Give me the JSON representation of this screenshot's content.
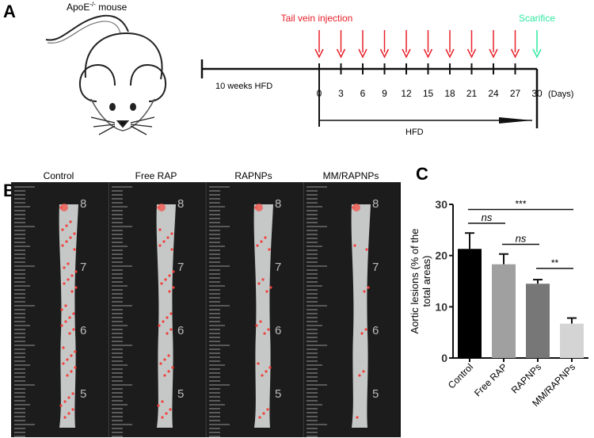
{
  "panel_a": {
    "label": "A",
    "mouse_label": "ApoE",
    "mouse_sup": "-/-",
    "mouse_suffix": " mouse",
    "injection_label": "Tail vein injection",
    "sacrifice_label": "Scarifice",
    "pre_label": "10 weeks HFD",
    "days": [
      "0",
      "3",
      "6",
      "9",
      "12",
      "15",
      "18",
      "21",
      "24",
      "27",
      "30"
    ],
    "days_unit": "(Days)",
    "hfd_label": "HFD",
    "colors": {
      "injection": "#e8202a",
      "sacrifice": "#2ee8a0"
    }
  },
  "panel_b": {
    "label": "B",
    "groups": [
      "Control",
      "Free RAP",
      "RAPNPs",
      "MM/RAPNPs"
    ],
    "ruler_numbers": [
      "8",
      "7",
      "6",
      "5"
    ]
  },
  "panel_c": {
    "label": "C"
  },
  "chart_data": {
    "type": "bar",
    "title": "",
    "xlabel": "",
    "ylabel": "Aortic lesions (% of the total areas)",
    "ylabel_lines": [
      "Aortic lesions (% of the",
      "total areas)"
    ],
    "categories": [
      "Control",
      "Free RAP",
      "RAPNPs",
      "MM/RAPNPs"
    ],
    "values": [
      21.3,
      18.3,
      14.5,
      6.7
    ],
    "errors": [
      3.1,
      2.0,
      0.8,
      1.1
    ],
    "colors": [
      "#000000",
      "#a0a0a0",
      "#777777",
      "#d4d4d4"
    ],
    "ylim": [
      0,
      30
    ],
    "yticks": [
      "0",
      "10",
      "20",
      "30"
    ],
    "significance": [
      {
        "from": 0,
        "to": 3,
        "label": "***",
        "y": 29
      },
      {
        "from": 0,
        "to": 1,
        "label": "ns",
        "y": 26.3
      },
      {
        "from": 1,
        "to": 2,
        "label": "ns",
        "y": 22.2
      },
      {
        "from": 2,
        "to": 3,
        "label": "**",
        "y": 17.5
      }
    ]
  }
}
